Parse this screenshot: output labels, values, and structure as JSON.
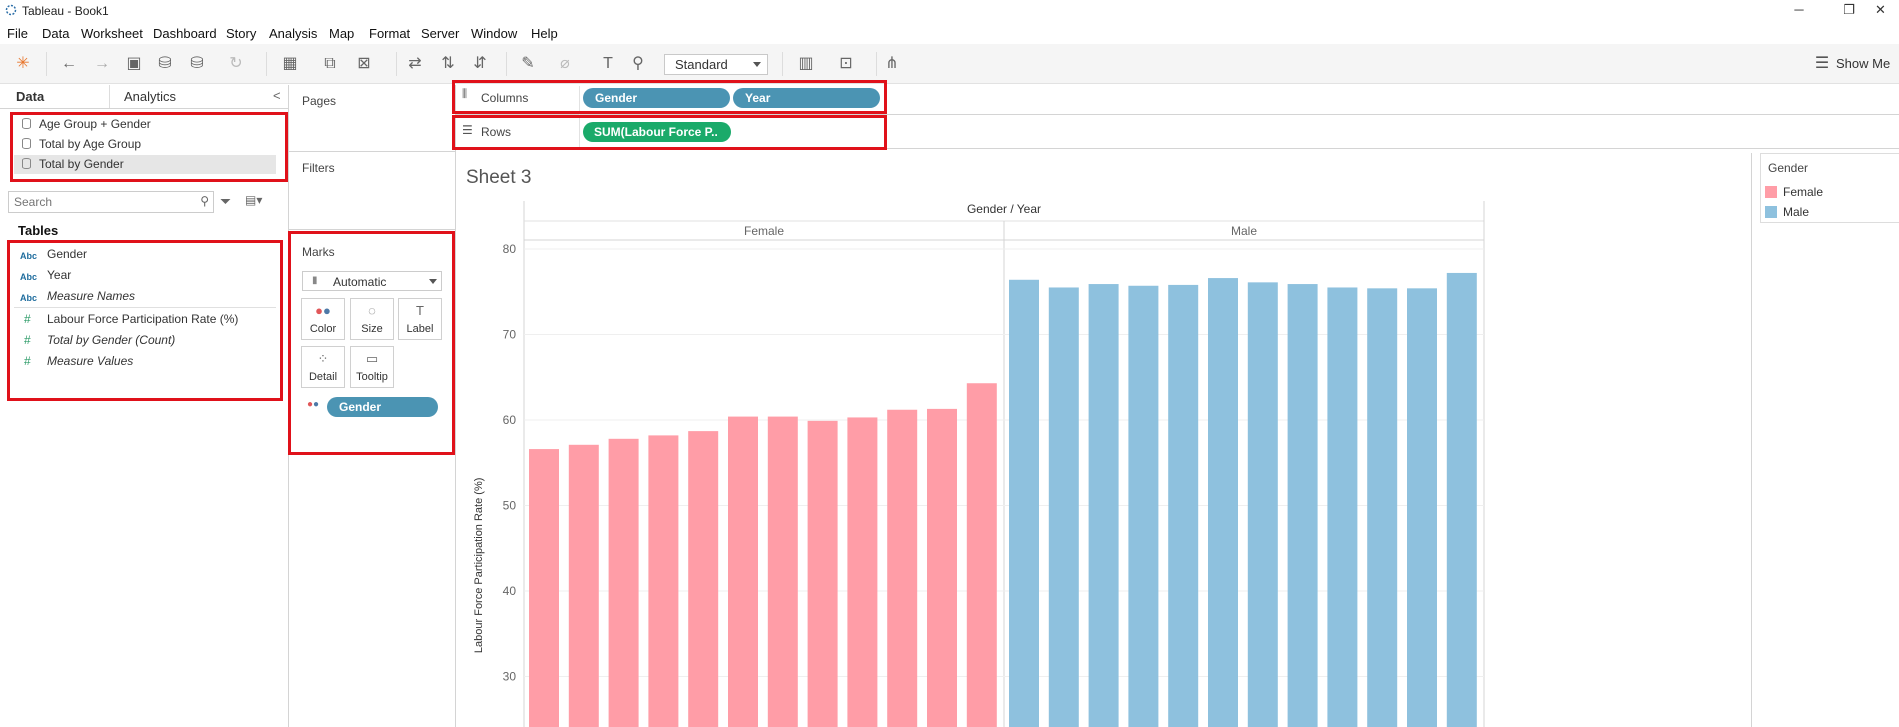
{
  "window": {
    "title": "Tableau - Book1",
    "min": "─",
    "restore": "❐",
    "close": "✕"
  },
  "menu": [
    "File",
    "Data",
    "Worksheet",
    "Dashboard",
    "Story",
    "Analysis",
    "Map",
    "Format",
    "Server",
    "Window",
    "Help"
  ],
  "toolbar": {
    "fit_value": "Standard",
    "show_me": "Show Me"
  },
  "side": {
    "tab_data": "Data",
    "tab_analytics": "Analytics",
    "collapse": "<",
    "datasources": [
      "Age Group + Gender",
      "Total by Age Group",
      "Total by Gender"
    ],
    "search_placeholder": "Search",
    "tables_heading": "Tables",
    "dimensions": [
      "Gender",
      "Year",
      "Measure Names"
    ],
    "measures": [
      "Labour Force Participation Rate (%)",
      "Total by Gender (Count)",
      "Measure Values"
    ],
    "abc": "Abc",
    "hash": "#"
  },
  "cards": {
    "pages": "Pages",
    "filters": "Filters",
    "marks": "Marks",
    "mark_type": "Automatic",
    "buttons": [
      "Color",
      "Size",
      "Label",
      "Detail",
      "Tooltip"
    ],
    "color_pill": "Gender"
  },
  "shelves": {
    "columns_label": "Columns",
    "rows_label": "Rows",
    "columns_pills": [
      "Gender",
      "Year"
    ],
    "rows_pill": "SUM(Labour Force P.."
  },
  "sheet": {
    "title": "Sheet 3"
  },
  "legend": {
    "title": "Gender",
    "items": [
      "Female",
      "Male"
    ],
    "colors": [
      "#ff9da7",
      "#8ec1de"
    ]
  },
  "chart_data": {
    "type": "bar",
    "header": "Gender / Year",
    "panes": [
      "Female",
      "Male"
    ],
    "ylabel": "Labour Force Participation Rate (%)",
    "yticks": [
      30,
      40,
      50,
      60,
      70,
      80
    ],
    "series": [
      {
        "name": "Female",
        "color": "#ff9da7",
        "values": [
          56.6,
          57.1,
          57.8,
          58.2,
          58.7,
          60.4,
          60.4,
          59.9,
          60.3,
          61.2,
          61.3,
          64.3
        ]
      },
      {
        "name": "Male",
        "color": "#8ec1de",
        "values": [
          76.4,
          75.5,
          75.9,
          75.7,
          75.8,
          76.6,
          76.1,
          75.9,
          75.5,
          75.4,
          75.4,
          77.2
        ]
      }
    ]
  }
}
